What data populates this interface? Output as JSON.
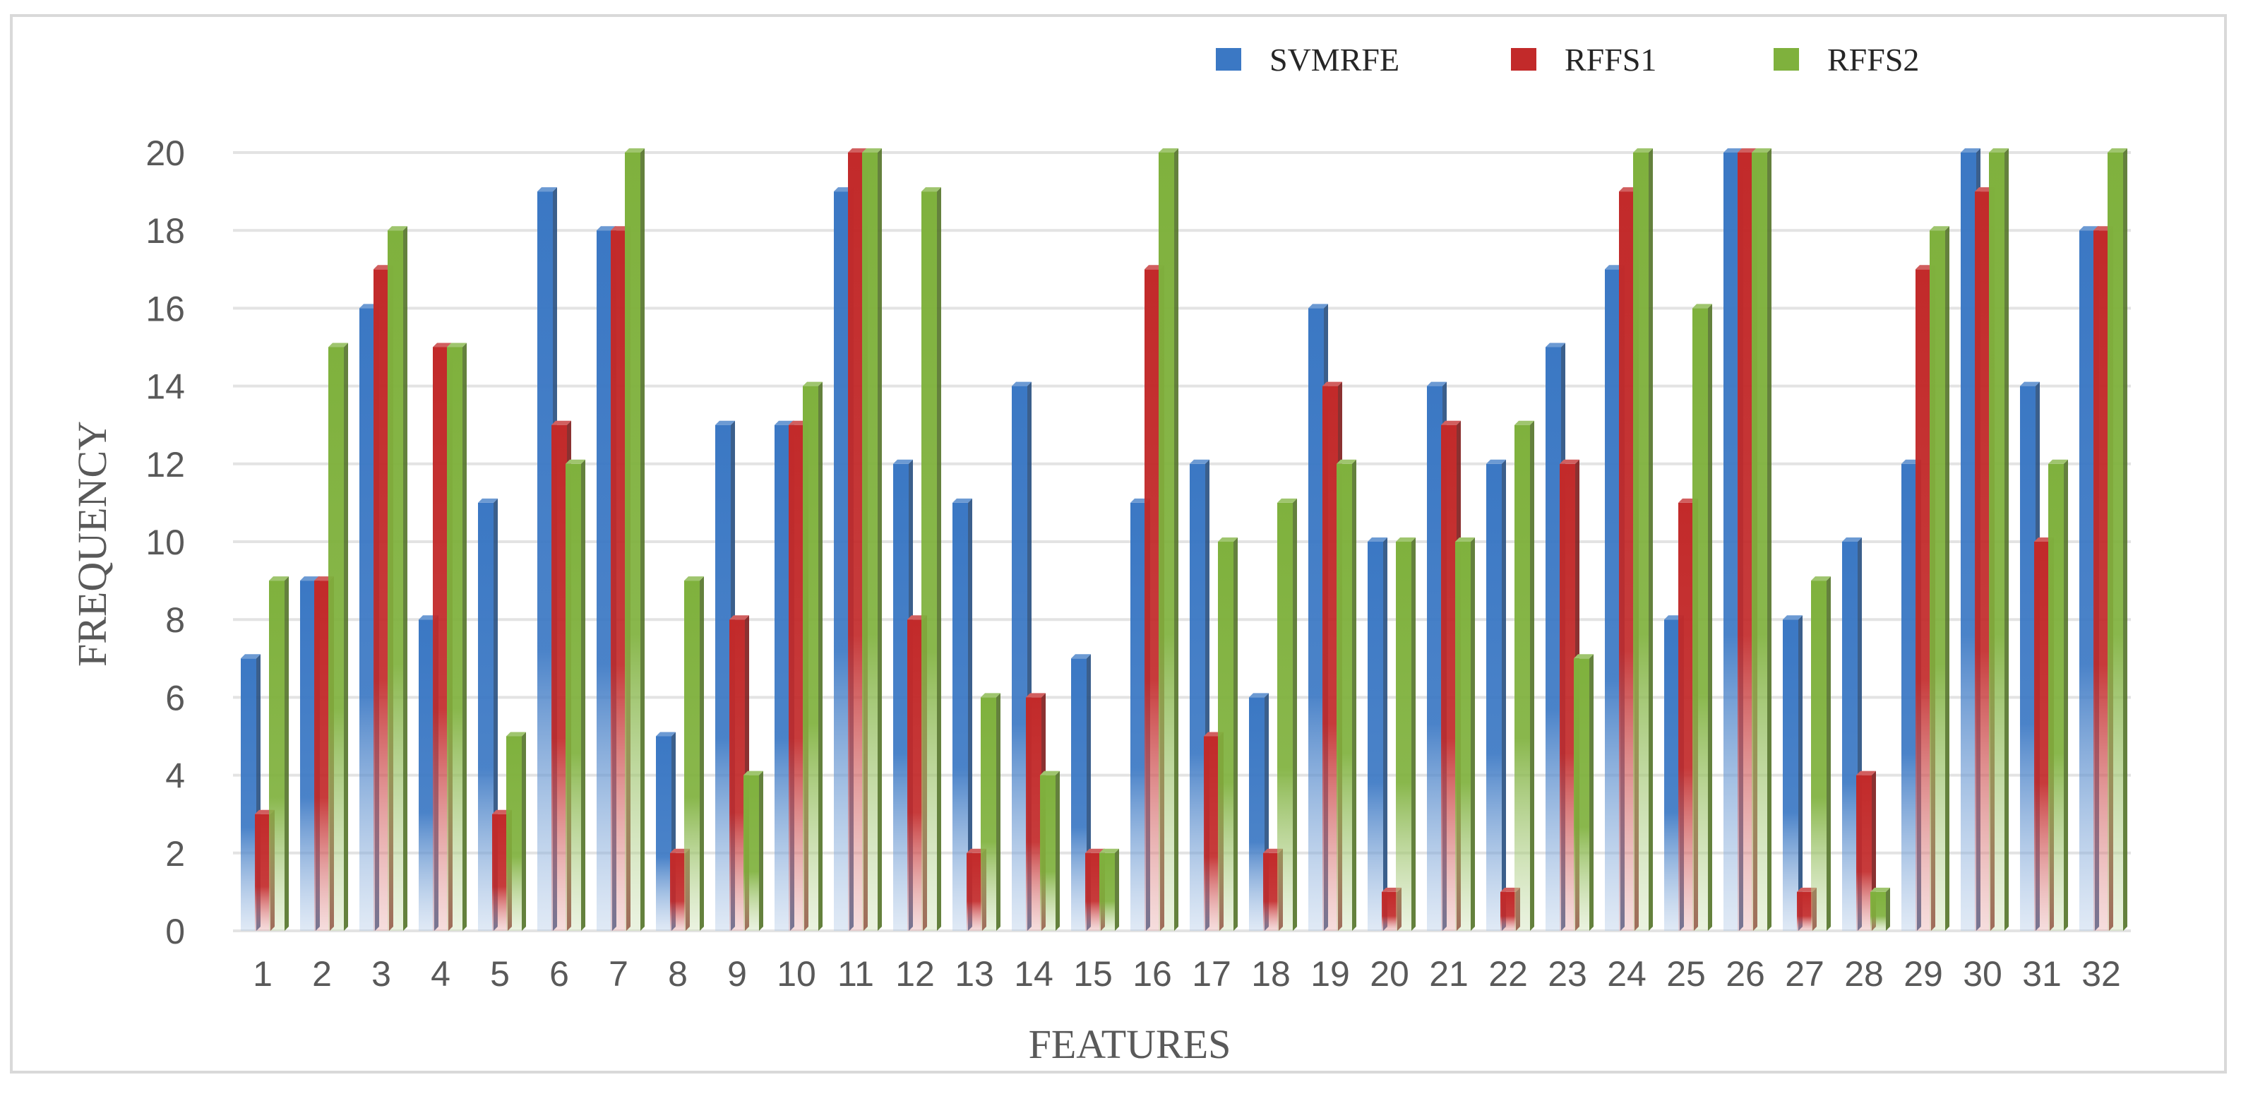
{
  "chart_data": {
    "type": "bar",
    "title": "",
    "xlabel": "FEATURES",
    "ylabel": "FREQUENCY",
    "ylim": [
      0,
      20
    ],
    "yticks": [
      0,
      2,
      4,
      6,
      8,
      10,
      12,
      14,
      16,
      18,
      20
    ],
    "grid": true,
    "legend_position": "top-right",
    "categories": [
      "1",
      "2",
      "3",
      "4",
      "5",
      "6",
      "7",
      "8",
      "9",
      "10",
      "11",
      "12",
      "13",
      "14",
      "15",
      "16",
      "17",
      "18",
      "19",
      "20",
      "21",
      "22",
      "23",
      "24",
      "25",
      "26",
      "27",
      "28",
      "29",
      "30",
      "31",
      "32"
    ],
    "series": [
      {
        "name": "SVMRFE",
        "color": "#3b78c4",
        "values": [
          7,
          9,
          16,
          8,
          11,
          19,
          18,
          5,
          13,
          13,
          19,
          12,
          11,
          14,
          7,
          11,
          12,
          6,
          16,
          10,
          14,
          12,
          15,
          17,
          8,
          20,
          8,
          10,
          12,
          20,
          14,
          18
        ]
      },
      {
        "name": "RFFS1",
        "color": "#c22a2a",
        "values": [
          3,
          9,
          17,
          15,
          3,
          13,
          18,
          2,
          8,
          13,
          20,
          8,
          2,
          6,
          2,
          17,
          5,
          2,
          14,
          1,
          13,
          1,
          12,
          19,
          11,
          20,
          1,
          4,
          17,
          19,
          10,
          18
        ]
      },
      {
        "name": "RFFS2",
        "color": "#7fb13d",
        "values": [
          9,
          15,
          18,
          15,
          5,
          12,
          20,
          9,
          4,
          14,
          20,
          19,
          6,
          4,
          2,
          20,
          10,
          11,
          12,
          10,
          10,
          13,
          7,
          20,
          16,
          20,
          9,
          1,
          18,
          20,
          12,
          20
        ]
      }
    ]
  }
}
